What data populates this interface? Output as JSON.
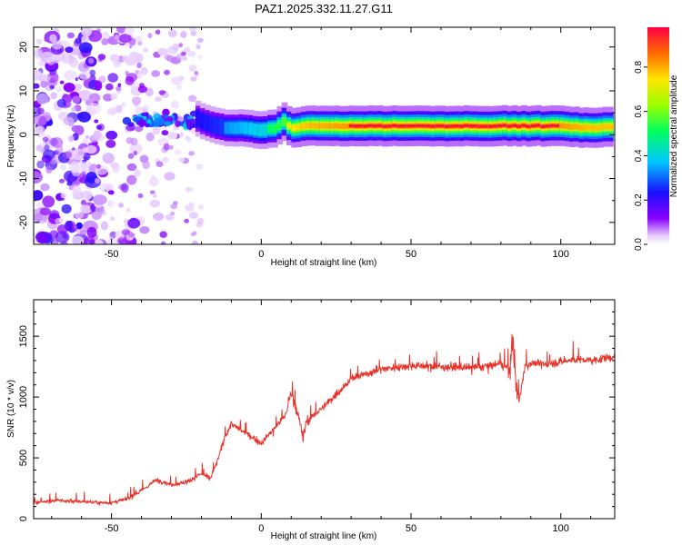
{
  "title": "PAZ1.2025.332.11.27.G11",
  "chart_data": [
    {
      "type": "heatmap",
      "name": "spectrogram",
      "xlabel": "Height of straight line (km)",
      "ylabel": "Frequency (Hz)",
      "xlim": [
        -76,
        118
      ],
      "ylim": [
        -25,
        24.5
      ],
      "xticks": [
        -50,
        0,
        50,
        100
      ],
      "yticks": [
        -20,
        -10,
        0,
        10,
        20
      ],
      "ridge": {
        "x": [
          -21,
          -15,
          -10,
          -5,
          0,
          5,
          8,
          10,
          15,
          20,
          30,
          40,
          50,
          60,
          70,
          80,
          90,
          100,
          110,
          118
        ],
        "freq": [
          3.5,
          2.0,
          1.5,
          1.5,
          1.0,
          1.5,
          3.0,
          1.5,
          2.0,
          2.0,
          2.0,
          2.0,
          2.0,
          2.0,
          2.0,
          2.0,
          2.0,
          2.0,
          1.5,
          2.0
        ],
        "amplitude": [
          0.45,
          0.5,
          0.55,
          0.6,
          0.65,
          0.7,
          0.75,
          0.85,
          0.9,
          0.92,
          0.95,
          0.95,
          0.95,
          0.95,
          0.95,
          0.95,
          0.95,
          0.95,
          0.9,
          0.9
        ]
      },
      "colorbar": {
        "label": "Normalized spectral amplitude",
        "ticks": [
          "0.0",
          "0.2",
          "0.4",
          "0.6",
          "0.8"
        ],
        "range": [
          0,
          0.98
        ]
      }
    },
    {
      "type": "line",
      "name": "snr",
      "xlabel": "Height of straight line (km)",
      "ylabel": "SNR (10 * v/v)",
      "xlim": [
        -76,
        118
      ],
      "ylim": [
        0,
        1800
      ],
      "xticks": [
        -50,
        0,
        50,
        100
      ],
      "yticks": [
        0,
        500,
        1000,
        1500
      ],
      "color": "#e8322a",
      "x": [
        -76,
        -70,
        -60,
        -50,
        -45,
        -40,
        -35,
        -30,
        -25,
        -20,
        -17,
        -15,
        -12,
        -10,
        -5,
        0,
        5,
        8,
        10,
        12,
        14,
        15,
        20,
        25,
        30,
        40,
        50,
        60,
        70,
        80,
        83,
        84,
        85,
        86,
        88,
        90,
        95,
        100,
        105,
        110,
        118
      ],
      "y": [
        130,
        150,
        140,
        130,
        160,
        230,
        320,
        280,
        300,
        370,
        330,
        450,
        680,
        780,
        700,
        620,
        760,
        850,
        1040,
        880,
        650,
        800,
        900,
        1020,
        1150,
        1230,
        1260,
        1250,
        1240,
        1270,
        1230,
        1500,
        1100,
        950,
        1250,
        1280,
        1270,
        1290,
        1310,
        1300,
        1330
      ]
    }
  ]
}
